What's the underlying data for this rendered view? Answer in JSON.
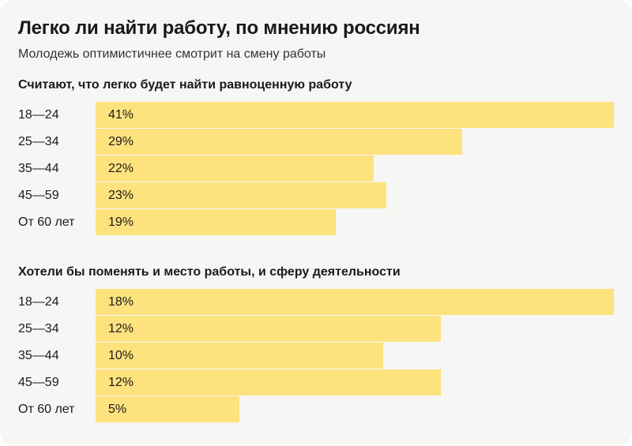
{
  "title": "Легко ли найти работу, по мнению россиян",
  "subtitle": "Молодежь оптимистичнее смотрит на смену работы",
  "colors": {
    "bar": "#fde27e",
    "background": "#f6f6f4"
  },
  "chart_data": [
    {
      "type": "bar",
      "orientation": "horizontal",
      "title": "Считают, что легко будет найти равноценную работу",
      "categories": [
        "18—24",
        "25—34",
        "35—44",
        "45—59",
        "От 60 лет"
      ],
      "values": [
        41,
        29,
        22,
        23,
        19
      ],
      "value_labels": [
        "41%",
        "29%",
        "22%",
        "23%",
        "19%"
      ],
      "unit": "%",
      "grid": false
    },
    {
      "type": "bar",
      "orientation": "horizontal",
      "title": "Хотели бы поменять и место работы, и сферу деятельности",
      "categories": [
        "18—24",
        "25—34",
        "35—44",
        "45—59",
        "От 60 лет"
      ],
      "values": [
        18,
        12,
        10,
        12,
        5
      ],
      "value_labels": [
        "18%",
        "12%",
        "10%",
        "12%",
        "5%"
      ],
      "unit": "%",
      "grid": false
    }
  ]
}
